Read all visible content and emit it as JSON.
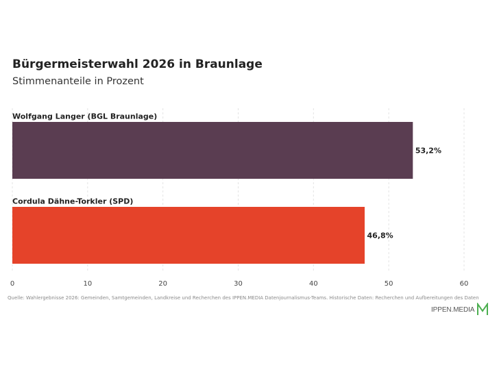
{
  "header": {
    "title": "Bürgermeisterwahl 2026 in Braunlage",
    "subtitle": "Stimmenanteile in Prozent"
  },
  "chart_data": {
    "type": "bar",
    "orientation": "horizontal",
    "title": "Bürgermeisterwahl 2026 in Braunlage",
    "subtitle": "Stimmenanteile in Prozent",
    "categories": [
      "Wolfgang Langer (BGL Braunlage)",
      "Cordula Dähne-Torkler (SPD)"
    ],
    "values": [
      53.2,
      46.8
    ],
    "value_labels": [
      "53,2%",
      "46,8%"
    ],
    "colors": [
      "#5a3d51",
      "#e5432a"
    ],
    "xlim": [
      0,
      60
    ],
    "x_ticks": [
      0,
      10,
      20,
      30,
      40,
      50,
      60
    ],
    "grid": "vertical dashed",
    "xlabel": "",
    "ylabel": ""
  },
  "footer": {
    "source": "Quelle: Wahlergebnisse 2026: Gemeinden, Samtgemeinden, Landkreise und Recherchen des IPPEN.MEDIA Datenjournalismus-Teams. Historische Daten: Recherchen und Aufbereitungen des Daten",
    "logo_text": "IPPEN.MEDIA",
    "logo_color": "#4caf50"
  }
}
